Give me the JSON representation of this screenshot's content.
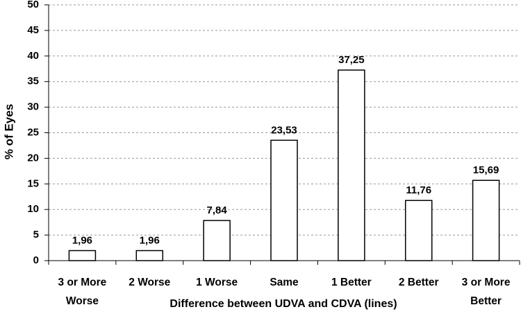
{
  "chart_data": {
    "type": "bar",
    "x_label": "Difference between UDVA and CDVA (lines)",
    "y_label": "% of Eyes",
    "categories": [
      "3 or More Worse",
      "2 Worse",
      "1 Worse",
      "Same",
      "1 Better",
      "2 Better",
      "3 or More Better"
    ],
    "values": [
      1.96,
      1.96,
      7.84,
      23.53,
      37.25,
      11.76,
      15.69
    ],
    "value_labels": [
      "1,96",
      "1,96",
      "7,84",
      "23,53",
      "37,25",
      "11,76",
      "15,69"
    ],
    "color": "#ffffff",
    "ylim": [
      0,
      50
    ],
    "yticks": [
      0,
      5,
      10,
      15,
      20,
      25,
      30,
      35,
      40,
      45,
      50
    ],
    "grid": true
  }
}
